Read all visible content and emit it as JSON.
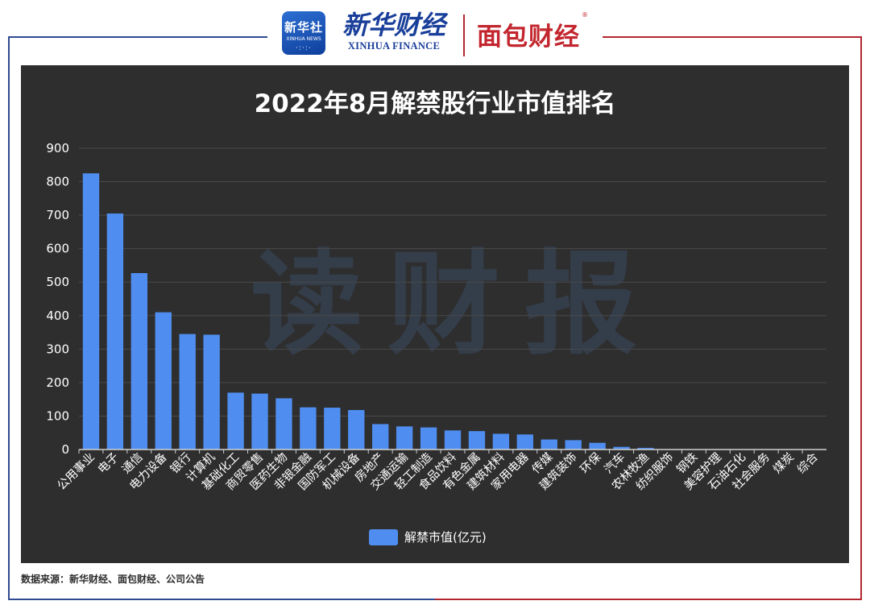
{
  "header": {
    "xinhuashe_logo": {
      "cn": "新华社",
      "en": "XINHUA NEWS"
    },
    "xinhua_finance": {
      "cn": "新华财经",
      "en": "XINHUA FINANCE"
    },
    "mianbao": "面包财经",
    "mianbao_mark": "®"
  },
  "watermark": "读财报",
  "footer": {
    "source": "数据来源：新华财经、面包财经、公司公告"
  },
  "colors": {
    "bar": "#4f8ef0",
    "panel": "#2e2e2e",
    "text": "#ffffff",
    "grid": "#4a4a4a",
    "frame_blue": "#2f4a8f",
    "frame_red": "#b32630"
  },
  "chart_data": {
    "type": "bar",
    "title": "2022年8月解禁股行业市值排名",
    "categories": [
      "公用事业",
      "电子",
      "通信",
      "电力设备",
      "银行",
      "计算机",
      "基础化工",
      "商贸零售",
      "医药生物",
      "非银金融",
      "国防军工",
      "机械设备",
      "房地产",
      "交通运输",
      "轻工制造",
      "食品饮料",
      "有色金属",
      "建筑材料",
      "家用电器",
      "传媒",
      "建筑装饰",
      "环保",
      "汽车",
      "农林牧渔",
      "纺织服饰",
      "钢铁",
      "美容护理",
      "石油石化",
      "社会服务",
      "煤炭",
      "综合"
    ],
    "series": [
      {
        "name": "解禁市值(亿元)",
        "values": [
          825,
          705,
          527,
          410,
          345,
          343,
          170,
          167,
          153,
          126,
          125,
          118,
          76,
          69,
          66,
          57,
          55,
          47,
          45,
          30,
          28,
          20,
          8,
          5,
          0,
          0,
          0,
          0,
          0,
          0,
          0
        ]
      }
    ],
    "ylim": [
      0,
      900
    ],
    "yticks": [
      0,
      100,
      200,
      300,
      400,
      500,
      600,
      700,
      800,
      900
    ],
    "grid": true,
    "legend_position": "bottom"
  }
}
